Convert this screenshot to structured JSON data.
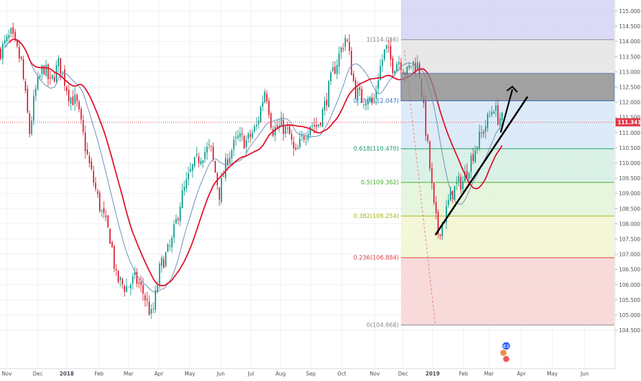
{
  "chart_data": {
    "type": "candlestick",
    "instrument_price": "111.341",
    "ylim": [
      104.45,
      115.25
    ],
    "y_ticks": [
      "115.000",
      "114.500",
      "114.000",
      "113.500",
      "113.000",
      "112.500",
      "112.000",
      "111.500",
      "111.000",
      "110.500",
      "110.000",
      "109.500",
      "109.000",
      "108.500",
      "108.000",
      "107.500",
      "107.000",
      "106.500",
      "106.000",
      "105.500",
      "105.000",
      "104.500"
    ],
    "x_ticks": [
      {
        "label": "Nov",
        "bold": false
      },
      {
        "label": "Dec",
        "bold": false
      },
      {
        "label": "2018",
        "bold": true
      },
      {
        "label": "Feb",
        "bold": false
      },
      {
        "label": "Mar",
        "bold": false
      },
      {
        "label": "Apr",
        "bold": false
      },
      {
        "label": "May",
        "bold": false
      },
      {
        "label": "Jun",
        "bold": false
      },
      {
        "label": "Jul",
        "bold": false
      },
      {
        "label": "Aug",
        "bold": false
      },
      {
        "label": "Sep",
        "bold": false
      },
      {
        "label": "Oct",
        "bold": false
      },
      {
        "label": "Nov",
        "bold": false
      },
      {
        "label": "Dec",
        "bold": false
      },
      {
        "label": "2019",
        "bold": true
      },
      {
        "label": "Feb",
        "bold": false
      },
      {
        "label": "Mar",
        "bold": false
      },
      {
        "label": "Apr",
        "bold": false
      },
      {
        "label": "May",
        "bold": false
      },
      {
        "label": "Jun",
        "bold": false
      }
    ],
    "fib_levels": [
      {
        "ratio": "1",
        "value": 114.056,
        "label": "1(114.056)",
        "color": "#8c8c8c",
        "fill": "#e6e6e6"
      },
      {
        "ratio": "0.786",
        "value": 112.047,
        "label": "0.786(112.047)",
        "color": "#3179c8",
        "fill": "#d9e9f7"
      },
      {
        "ratio": "0.618",
        "value": 110.47,
        "label": "0.618(110.470)",
        "color": "#1e9e6a",
        "fill": "#d6efe4"
      },
      {
        "ratio": "0.5",
        "value": 109.362,
        "label": "0.5(109.362)",
        "color": "#43b02a",
        "fill": "#e3f4d9"
      },
      {
        "ratio": "0.382",
        "value": 108.254,
        "label": "0.382(108.254)",
        "color": "#a7b516",
        "fill": "#f3f5d4"
      },
      {
        "ratio": "0.236",
        "value": 106.884,
        "label": "0.236(106.884)",
        "color": "#e04040",
        "fill": "#f7d6d6"
      },
      {
        "ratio": "0",
        "value": 104.668,
        "label": "0(104.668)",
        "color": "#8c8c8c",
        "fill": ""
      }
    ],
    "fib_extension_fill": "#d4d4f5",
    "zone_box": {
      "low": 112.047,
      "high": 112.95
    },
    "event_badge": "63",
    "colors": {
      "up": "#26a69a",
      "down": "#e0394a",
      "ma_fast": "#e0102a",
      "ma_slow": "#6a8fb5",
      "trend": "#000000"
    }
  }
}
